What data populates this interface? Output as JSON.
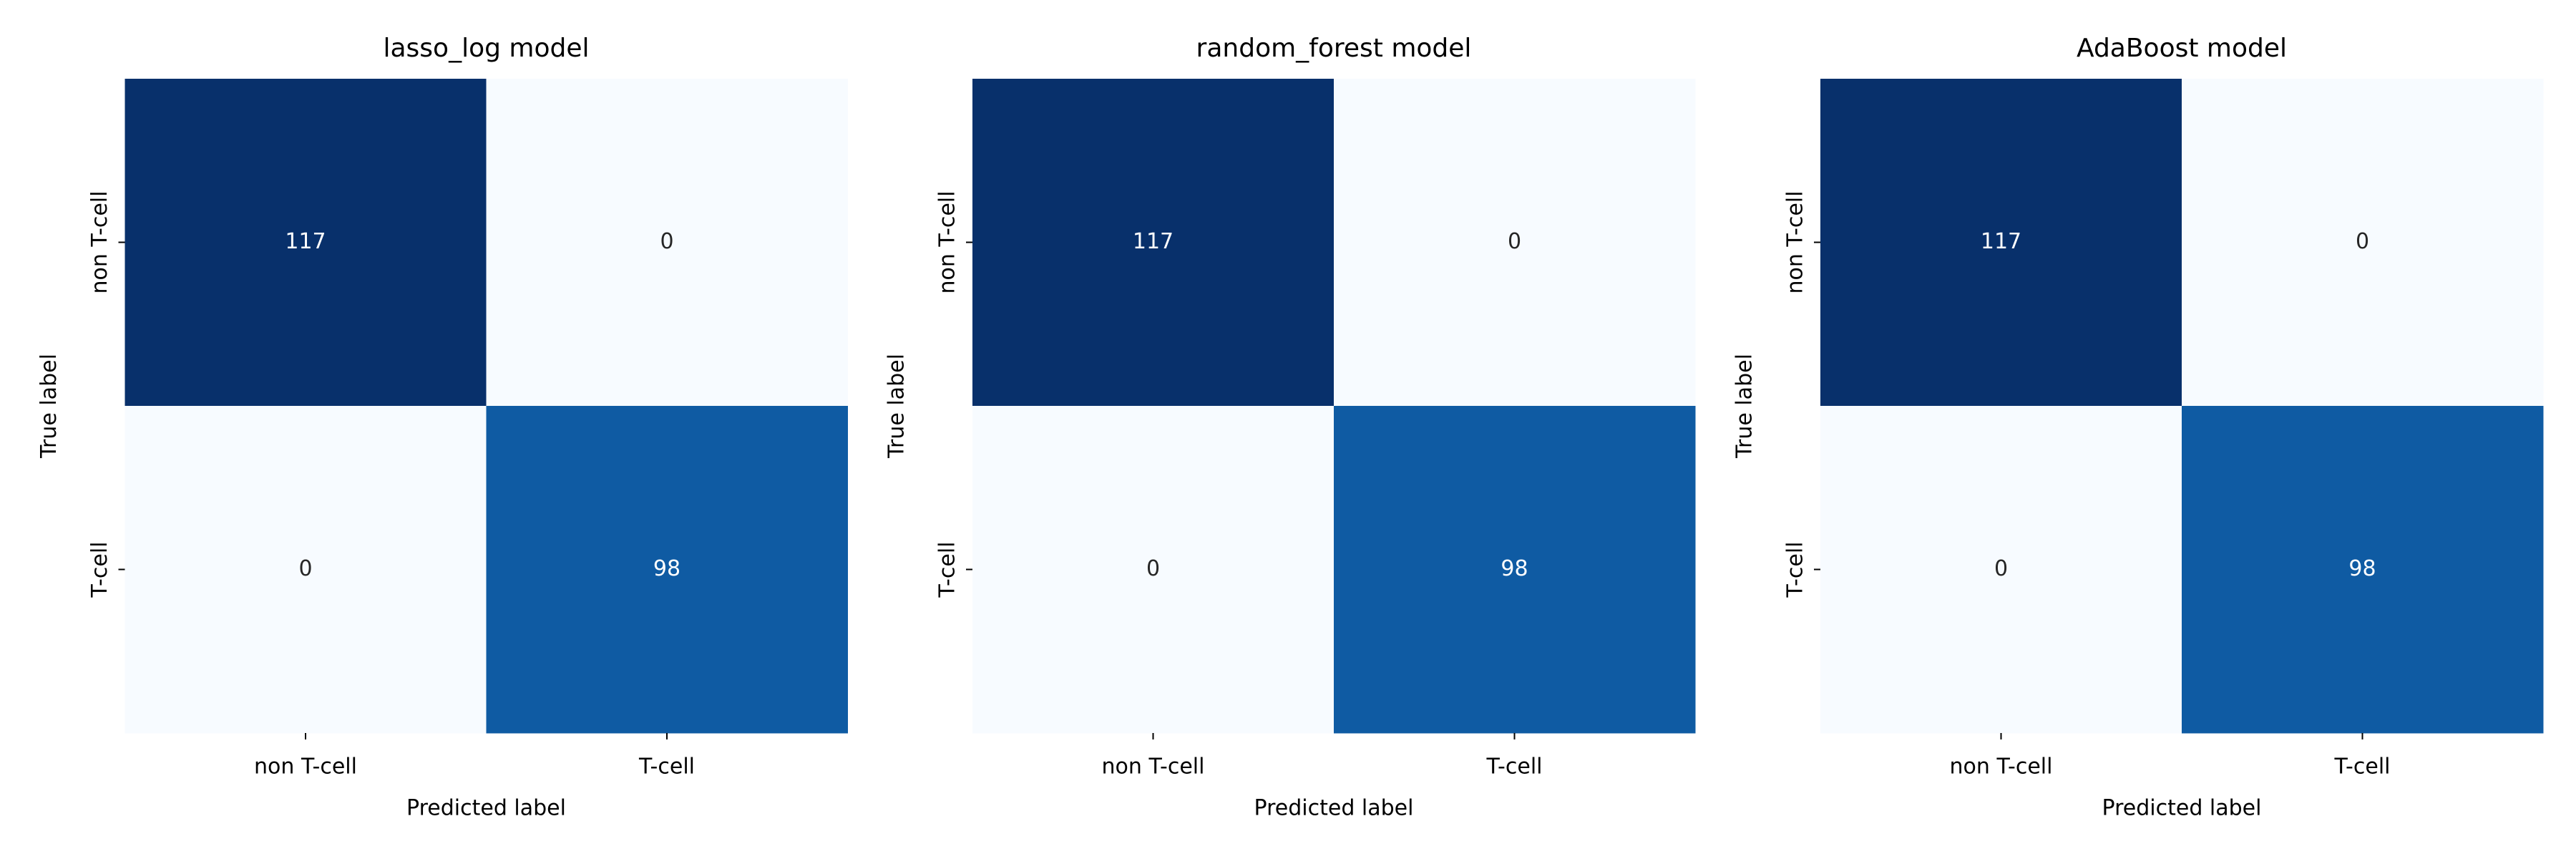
{
  "chart_data": [
    {
      "type": "heatmap",
      "title": "lasso_log model",
      "xlabel": "Predicted label",
      "ylabel": "True label",
      "categories": [
        "non T-cell",
        "T-cell"
      ],
      "y_categories": [
        "non T-cell",
        "T-cell"
      ],
      "values": [
        [
          117,
          0
        ],
        [
          0,
          98
        ]
      ],
      "colormap": "Blues"
    },
    {
      "type": "heatmap",
      "title": "random_forest model",
      "xlabel": "Predicted label",
      "ylabel": "True label",
      "categories": [
        "non T-cell",
        "T-cell"
      ],
      "y_categories": [
        "non T-cell",
        "T-cell"
      ],
      "values": [
        [
          117,
          0
        ],
        [
          0,
          98
        ]
      ],
      "colormap": "Blues"
    },
    {
      "type": "heatmap",
      "title": "AdaBoost model",
      "xlabel": "Predicted label",
      "ylabel": "True label",
      "categories": [
        "non T-cell",
        "T-cell"
      ],
      "y_categories": [
        "non T-cell",
        "T-cell"
      ],
      "values": [
        [
          117,
          0
        ],
        [
          0,
          98
        ]
      ],
      "colormap": "Blues"
    }
  ]
}
